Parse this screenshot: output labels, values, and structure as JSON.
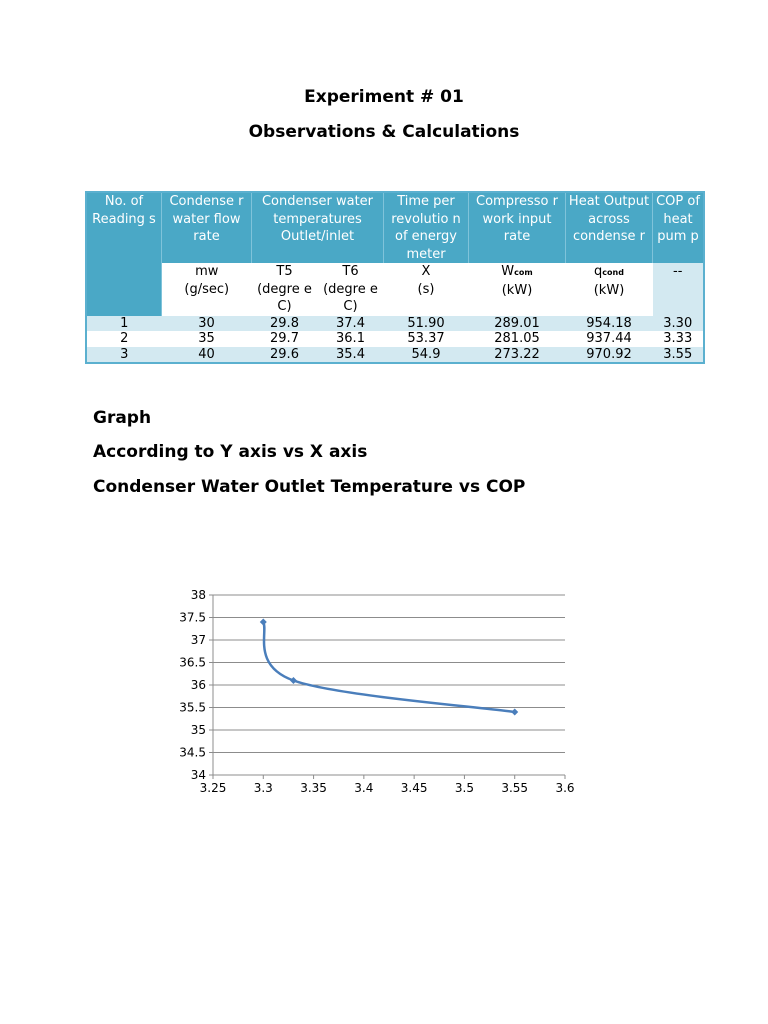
{
  "header": {
    "title": "Experiment # 01",
    "subtitle": "Observations & Calculations"
  },
  "table": {
    "col_headers": [
      "No. of Reading s",
      "Condense r water flow rate",
      "Condenser water temperatures Outlet/inlet",
      "Time per revolutio n of energy meter",
      "Compresso r work input rate",
      "Heat Output across condense r",
      "COP of heat pum p"
    ],
    "symbols": {
      "flow": "mw",
      "t5": "T5",
      "t6": "T6",
      "time": "X",
      "work_main": "W",
      "work_sub": "com",
      "heat_main": "q",
      "heat_sub": "cond",
      "cop": "--"
    },
    "units": {
      "flow": "(g/sec)",
      "t5": "(degre e C)",
      "t6": "(degre e C)",
      "time": "(s)",
      "work": "(kW)",
      "heat": "(kW)"
    },
    "rows": [
      [
        "1",
        "30",
        "29.8",
        "37.4",
        "51.90",
        "289.01",
        "954.18",
        "3.30"
      ],
      [
        "2",
        "35",
        "29.7",
        "36.1",
        "53.37",
        "281.05",
        "937.44",
        "3.33"
      ],
      [
        "3",
        "40",
        "29.6",
        "35.4",
        "54.9",
        "273.22",
        "970.92",
        "3.55"
      ]
    ]
  },
  "sections": {
    "graph": "Graph",
    "axis_desc": "According to Y axis vs X axis",
    "relation": "Condenser Water Outlet Temperature vs COP"
  },
  "chart_data": {
    "type": "scatter",
    "title": "",
    "xlabel": "",
    "ylabel": "",
    "x": [
      3.3,
      3.33,
      3.55
    ],
    "y": [
      37.4,
      36.1,
      35.4
    ],
    "xlim": [
      3.25,
      3.6
    ],
    "ylim": [
      34,
      38
    ],
    "x_ticks": [
      "3.25",
      "3.3",
      "3.35",
      "3.4",
      "3.45",
      "3.5",
      "3.55",
      "3.6"
    ],
    "y_ticks": [
      "34",
      "34.5",
      "35",
      "35.5",
      "36",
      "36.5",
      "37",
      "37.5",
      "38"
    ],
    "smooth_line": true,
    "grid": "horizontal",
    "legend": "none",
    "line_color": "#4a7ebb"
  }
}
